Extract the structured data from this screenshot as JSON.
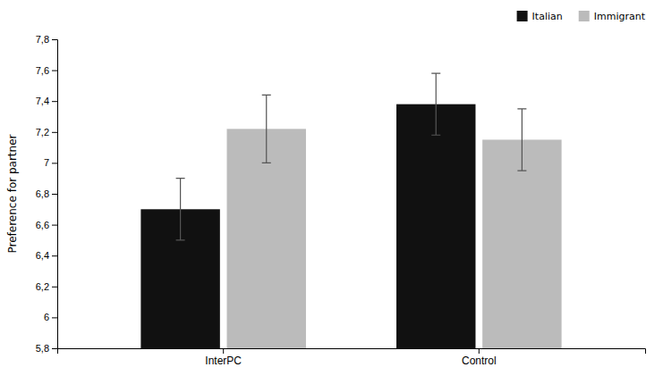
{
  "chart_data": {
    "type": "bar",
    "categories": [
      "InterPC",
      "Control"
    ],
    "series": [
      {
        "name": "Italian",
        "color": "#111111",
        "values": [
          6.7,
          7.38
        ],
        "errors": [
          0.2,
          0.2
        ]
      },
      {
        "name": "Immigrant",
        "color": "#bbbbbb",
        "values": [
          7.22,
          7.15
        ],
        "errors": [
          0.22,
          0.2
        ]
      }
    ],
    "ylabel": "Preference for partner",
    "ylim": [
      5.8,
      7.8
    ],
    "yticks": [
      {
        "value": 5.8,
        "label": "5,8"
      },
      6,
      {
        "value": 6.2,
        "label": "6,2"
      },
      {
        "value": 6.4,
        "label": "6,4"
      },
      {
        "value": 6.6,
        "label": "6,6"
      },
      {
        "value": 6.8,
        "label": "6,8"
      },
      7,
      {
        "value": 7.2,
        "label": "7,2"
      },
      {
        "value": 7.4,
        "label": "7,4"
      },
      {
        "value": 7.6,
        "label": "7,6"
      },
      {
        "value": 7.8,
        "label": "7,8"
      }
    ],
    "legend": "upper right",
    "grid": false
  }
}
